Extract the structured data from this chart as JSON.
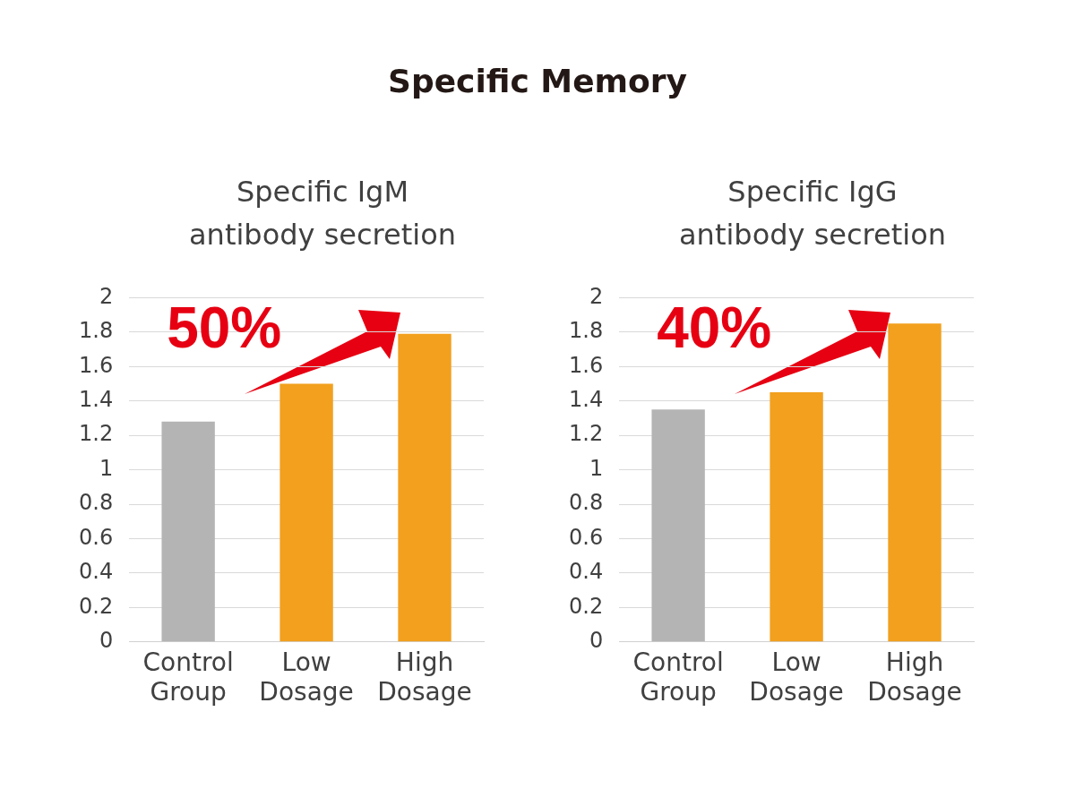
{
  "chart_data": [
    {
      "type": "other",
      "title": "Specific Memory"
    },
    {
      "type": "bar",
      "title": "Specific IgM antibody secretion",
      "categories": [
        "Control Group",
        "Low Dosage",
        "High Dosage"
      ],
      "values": [
        1.28,
        1.5,
        1.79
      ],
      "colors": [
        "#b4b4b4",
        "#f2a01e",
        "#f2a01e"
      ],
      "ylim": [
        0,
        2
      ],
      "yticks": [
        0,
        0.2,
        0.4,
        0.6,
        0.8,
        1,
        1.2,
        1.4,
        1.6,
        1.8,
        2
      ],
      "grid": "y",
      "annotations": [
        "50%"
      ]
    },
    {
      "type": "bar",
      "title": "Specific IgG antibody secretion",
      "categories": [
        "Control Group",
        "Low Dosage",
        "High Dosage"
      ],
      "values": [
        1.35,
        1.45,
        1.85
      ],
      "colors": [
        "#b4b4b4",
        "#f2a01e",
        "#f2a01e"
      ],
      "ylim": [
        0,
        2
      ],
      "yticks": [
        0,
        0.2,
        0.4,
        0.6,
        0.8,
        1,
        1.2,
        1.4,
        1.6,
        1.8,
        2
      ],
      "grid": "y",
      "annotations": [
        "40%"
      ]
    }
  ]
}
